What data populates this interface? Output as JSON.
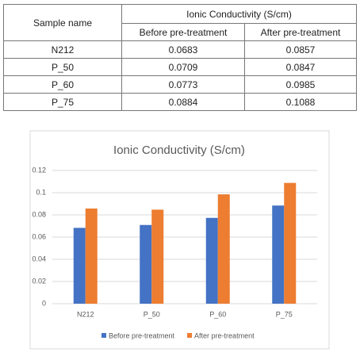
{
  "table": {
    "header": {
      "sample": "Sample name",
      "group": "Ionic Conductivity (S/cm)",
      "before": "Before pre-treatment",
      "after": "After pre-treatment"
    },
    "rows": [
      [
        "N212",
        "0.0683",
        "0.0857"
      ],
      [
        "P_50",
        "0.0709",
        "0.0847"
      ],
      [
        "P_60",
        "0.0773",
        "0.0985"
      ],
      [
        "P_75",
        "0.0884",
        "0.1088"
      ]
    ]
  },
  "chart_data": {
    "type": "bar",
    "title": "Ionic Conductivity (S/cm)",
    "categories": [
      "N212",
      "P_50",
      "P_60",
      "P_75"
    ],
    "series": [
      {
        "name": "Before pre-treatment",
        "color": "#4472c4",
        "values": [
          0.0683,
          0.0709,
          0.0773,
          0.0884
        ]
      },
      {
        "name": "After pre-treatment",
        "color": "#ed7d31",
        "values": [
          0.0857,
          0.0847,
          0.0985,
          0.1088
        ]
      }
    ],
    "ylim": [
      0,
      0.12
    ],
    "yticks": [
      0,
      0.02,
      0.04,
      0.06,
      0.08,
      0.1,
      0.12
    ],
    "grid": true,
    "legend": "bottom"
  }
}
